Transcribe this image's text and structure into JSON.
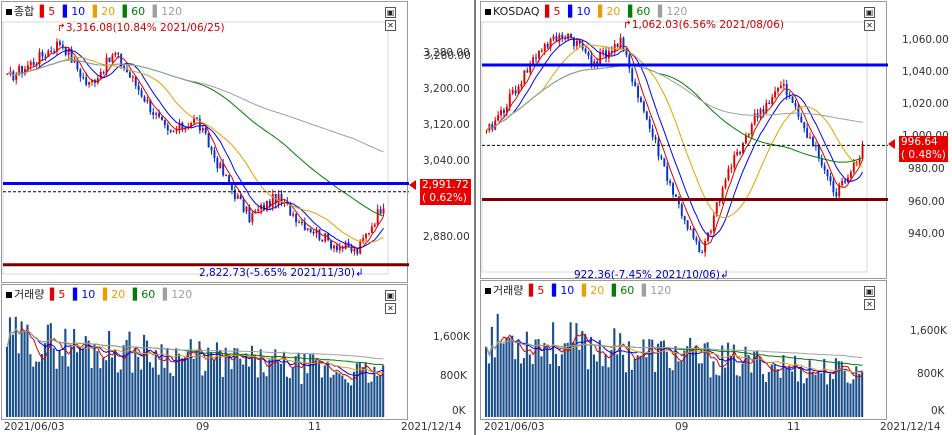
{
  "left": {
    "price_header": {
      "name": "종합",
      "ma": [
        "5",
        "10",
        "20",
        "60",
        "120"
      ]
    },
    "volume_header": {
      "name": "거래량",
      "ma": [
        "5",
        "10",
        "20",
        "60",
        "120"
      ]
    },
    "price_axis": [
      "3,280.00",
      "3,200.00",
      "3,120.00",
      "3,040.00",
      "2,880.00"
    ],
    "volume_axis": [
      "1,600K",
      "800K",
      "0K"
    ],
    "x_axis": [
      "2021/06/03",
      "09",
      "11",
      "2021/12/14"
    ],
    "high_annotation": "3,316.08(10.84% 2021/06/25)",
    "low_annotation": "2,822.73(-5.65% 2021/11/30)",
    "current_price": "2,991.72",
    "current_change": "( 0.62%)",
    "price_min": 2820,
    "price_max": 3330,
    "ref_lines": {
      "blue": 3002,
      "black_dashed": 2985,
      "dark_red": 2835
    },
    "volume_max": 2200
  },
  "right": {
    "price_header": {
      "name": "KOSDAQ",
      "ma": [
        "5",
        "10",
        "20",
        "60",
        "120"
      ]
    },
    "volume_header": {
      "name": "거래량",
      "ma": [
        "5",
        "10",
        "20",
        "60",
        "120"
      ]
    },
    "price_axis": [
      "1,060.00",
      "1,040.00",
      "1,020.00",
      "1,000.00",
      "980.00",
      "960.00",
      "940.00"
    ],
    "volume_axis": [
      "1,600K",
      "800K",
      "0K"
    ],
    "x_axis": [
      "2021/06/03",
      "09",
      "11",
      "2021/12/14"
    ],
    "high_annotation": "1,062.03(6.56% 2021/08/06)",
    "low_annotation": "922.36(-7.45% 2021/10/06)",
    "current_price": "996.64",
    "current_change": "( 0.48%)",
    "price_min": 920,
    "price_max": 1070,
    "ref_lines": {
      "blue": 1045,
      "black_dashed": 996,
      "dark_red": 963
    },
    "volume_max": 2200
  },
  "colors": {
    "up": "#e00000",
    "down": "#0033cc",
    "ma5": "#e00000",
    "ma10": "#0000ff",
    "ma20": "#e8a000",
    "ma60": "#008000",
    "ma120": "#a0a0a0",
    "volume_bar": "#1b4f8a",
    "ref_blue": "#0000ff",
    "ref_red": "#7a0000",
    "price_box": "#e80000"
  }
}
